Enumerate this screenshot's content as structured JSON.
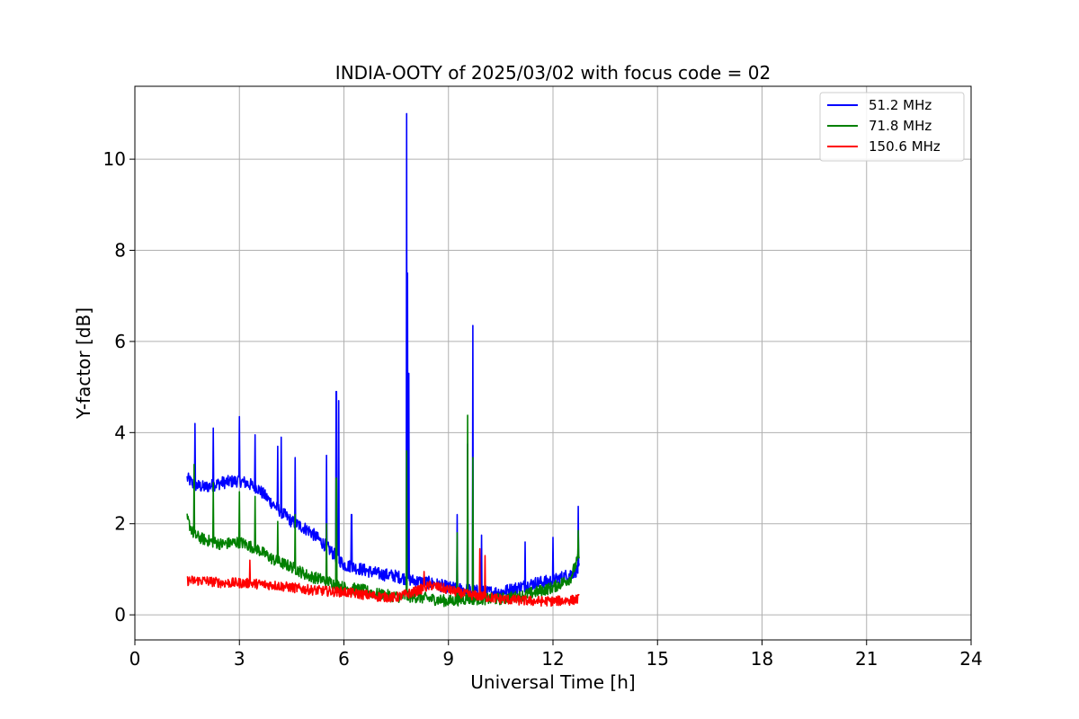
{
  "chart_data": {
    "type": "line",
    "title": "INDIA-OOTY of 2025/03/02 with focus code = 02",
    "xlabel": "Universal Time [h]",
    "ylabel": "Y-factor [dB]",
    "xlim": [
      0,
      24
    ],
    "ylim": [
      -0.55,
      11.6
    ],
    "x_ticks": [
      0,
      3,
      6,
      9,
      12,
      15,
      18,
      21,
      24
    ],
    "y_ticks": [
      0,
      2,
      4,
      6,
      8,
      10
    ],
    "x_tick_labels": [
      "0",
      "3",
      "6",
      "9",
      "12",
      "15",
      "18",
      "21",
      "24"
    ],
    "y_tick_labels": [
      "0",
      "2",
      "4",
      "6",
      "8",
      "10"
    ],
    "grid": true,
    "legend_position": "top-right",
    "series": [
      {
        "name": "  51.2 MHz",
        "color": "#0000ff",
        "x": [
          1.5,
          1.7,
          2.0,
          2.5,
          3.0,
          3.5,
          4.0,
          4.5,
          5.0,
          5.5,
          6.0,
          6.5,
          7.0,
          7.5,
          8.0,
          8.5,
          9.0,
          9.5,
          10.0,
          10.5,
          11.0,
          11.5,
          12.0,
          12.5,
          12.75
        ],
        "values": [
          3.0,
          2.85,
          2.8,
          2.9,
          2.95,
          2.8,
          2.4,
          2.05,
          1.85,
          1.5,
          1.1,
          1.0,
          0.9,
          0.85,
          0.75,
          0.7,
          0.6,
          0.55,
          0.5,
          0.5,
          0.6,
          0.7,
          0.75,
          0.9,
          1.0
        ],
        "spikes": [
          [
            1.72,
            4.2
          ],
          [
            2.25,
            4.1
          ],
          [
            3.0,
            4.35
          ],
          [
            3.45,
            3.95
          ],
          [
            4.1,
            3.7
          ],
          [
            4.2,
            3.9
          ],
          [
            4.6,
            3.45
          ],
          [
            5.5,
            3.5
          ],
          [
            5.78,
            4.9
          ],
          [
            5.85,
            4.7
          ],
          [
            6.22,
            2.2
          ],
          [
            7.8,
            11.0
          ],
          [
            7.83,
            7.5
          ],
          [
            7.86,
            5.3
          ],
          [
            9.25,
            2.2
          ],
          [
            9.55,
            3.75
          ],
          [
            9.7,
            6.35
          ],
          [
            9.95,
            1.75
          ],
          [
            11.2,
            1.6
          ],
          [
            12.0,
            1.7
          ],
          [
            12.72,
            2.38
          ]
        ]
      },
      {
        "name": "  71.8 MHz",
        "color": "#008000",
        "x": [
          1.5,
          1.7,
          2.0,
          2.5,
          3.0,
          3.5,
          4.0,
          4.5,
          5.0,
          5.5,
          6.0,
          6.5,
          7.0,
          7.5,
          8.0,
          8.5,
          9.0,
          9.5,
          10.0,
          10.5,
          11.0,
          11.5,
          12.0,
          12.5,
          12.75
        ],
        "values": [
          2.1,
          1.75,
          1.65,
          1.55,
          1.6,
          1.45,
          1.2,
          1.05,
          0.85,
          0.75,
          0.6,
          0.55,
          0.45,
          0.4,
          0.4,
          0.35,
          0.3,
          0.35,
          0.35,
          0.35,
          0.4,
          0.5,
          0.6,
          0.8,
          1.3
        ],
        "spikes": [
          [
            1.7,
            3.3
          ],
          [
            2.25,
            2.9
          ],
          [
            3.0,
            2.7
          ],
          [
            3.45,
            2.6
          ],
          [
            4.1,
            2.05
          ],
          [
            4.6,
            2.2
          ],
          [
            5.5,
            2.0
          ],
          [
            5.78,
            3.0
          ],
          [
            7.8,
            3.6
          ],
          [
            9.25,
            1.8
          ],
          [
            9.55,
            4.38
          ],
          [
            9.7,
            3.45
          ],
          [
            12.72,
            1.85
          ]
        ]
      },
      {
        "name": " 150.6 MHz",
        "color": "#ff0000",
        "x": [
          1.5,
          2.0,
          2.5,
          3.0,
          3.5,
          4.0,
          4.5,
          5.0,
          5.5,
          6.0,
          6.5,
          7.0,
          7.5,
          8.0,
          8.5,
          9.0,
          9.5,
          10.0,
          10.5,
          11.0,
          11.5,
          12.0,
          12.5,
          12.75
        ],
        "values": [
          0.75,
          0.75,
          0.7,
          0.7,
          0.68,
          0.65,
          0.6,
          0.55,
          0.52,
          0.5,
          0.45,
          0.4,
          0.38,
          0.5,
          0.65,
          0.55,
          0.45,
          0.4,
          0.35,
          0.32,
          0.3,
          0.3,
          0.32,
          0.35
        ],
        "spikes": [
          [
            3.3,
            1.2
          ],
          [
            8.3,
            0.95
          ],
          [
            9.9,
            1.45
          ],
          [
            10.05,
            1.3
          ]
        ]
      }
    ]
  }
}
